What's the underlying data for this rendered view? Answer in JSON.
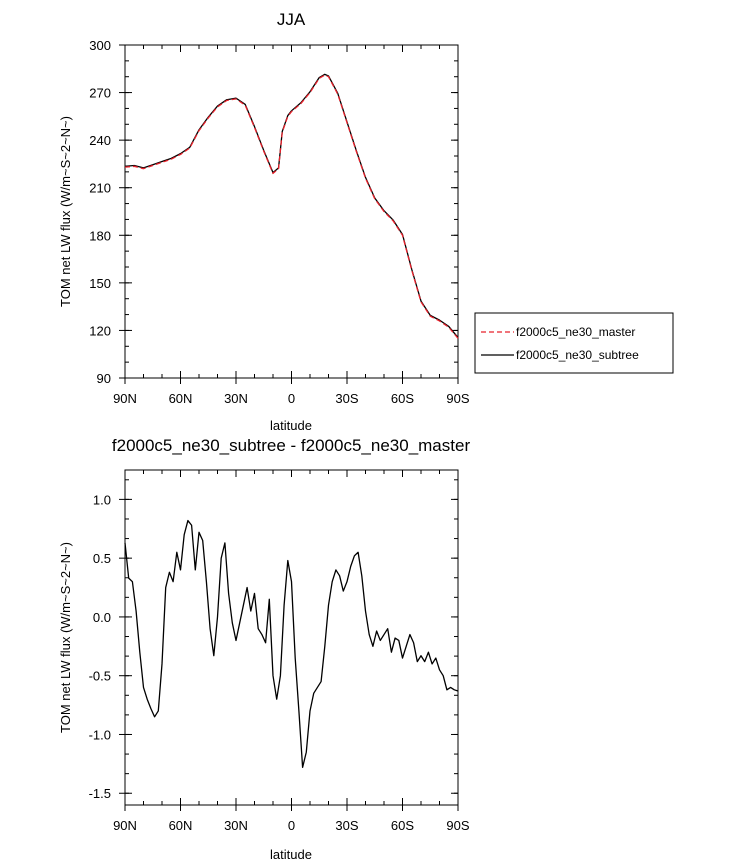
{
  "chart_data": [
    {
      "type": "line",
      "title": "JJA",
      "xlabel": "latitude",
      "ylabel": "TOM net LW flux (W/m~S~2~N~)",
      "xlim": [
        -90,
        90
      ],
      "ylim": [
        90,
        300
      ],
      "x_ticks": [
        -90,
        -60,
        -30,
        0,
        30,
        60,
        90
      ],
      "x_tick_labels": [
        "90N",
        "60N",
        "30N",
        "0",
        "30S",
        "60S",
        "90S"
      ],
      "y_ticks": [
        90,
        120,
        150,
        180,
        210,
        240,
        270,
        300
      ],
      "y_tick_labels": [
        "90",
        "120",
        "150",
        "180",
        "210",
        "240",
        "270",
        "300"
      ],
      "legend_position": "right",
      "x": [
        -90,
        -85,
        -80,
        -75,
        -70,
        -65,
        -60,
        -55,
        -50,
        -45,
        -40,
        -35,
        -30,
        -25,
        -20,
        -15,
        -10,
        -7,
        -5,
        -2,
        0,
        5,
        10,
        15,
        18,
        20,
        25,
        30,
        35,
        40,
        45,
        50,
        55,
        60,
        65,
        70,
        75,
        80,
        85,
        90
      ],
      "series": [
        {
          "name": "f2000c5_ne30_master",
          "color": "#e8202a",
          "style": "dashed",
          "values": [
            223,
            223.5,
            222,
            224,
            226,
            228,
            231,
            235,
            246,
            254,
            261,
            265,
            266,
            262,
            248,
            233,
            219,
            222,
            245,
            255,
            258,
            263,
            270,
            279,
            281,
            280,
            269,
            251,
            233,
            216,
            203,
            195,
            189,
            180,
            158,
            138,
            129,
            126,
            122,
            115
          ]
        },
        {
          "name": "f2000c5_ne30_subtree",
          "color": "#000000",
          "style": "solid",
          "values": [
            223.5,
            224,
            222.5,
            224.5,
            226.5,
            228.5,
            231.5,
            235.5,
            246.5,
            254.5,
            261.5,
            265.5,
            266.5,
            262.5,
            248.5,
            233.5,
            219.5,
            222.5,
            245.5,
            255.5,
            258.5,
            263.5,
            270.5,
            279.5,
            281.5,
            280.5,
            269.5,
            251.5,
            233.5,
            216.5,
            203.5,
            195.5,
            189.5,
            180.5,
            158.5,
            138.5,
            129.5,
            126.5,
            122.5,
            115.5
          ]
        }
      ]
    },
    {
      "type": "line",
      "title": "f2000c5_ne30_subtree - f2000c5_ne30_master",
      "xlabel": "latitude",
      "ylabel": "TOM net LW flux (W/m~S~2~N~)",
      "xlim": [
        -90,
        90
      ],
      "ylim": [
        -1.6,
        1.25
      ],
      "x_ticks": [
        -90,
        -60,
        -30,
        0,
        30,
        60,
        90
      ],
      "x_tick_labels": [
        "90N",
        "60N",
        "30N",
        "0",
        "30S",
        "60S",
        "90S"
      ],
      "y_ticks": [
        -1.5,
        -1.0,
        -0.5,
        0.0,
        0.5,
        1.0
      ],
      "y_tick_labels": [
        "-1.5",
        "-1.0",
        "-0.5",
        "0.0",
        "0.5",
        "1.0"
      ],
      "x": [
        -90,
        -88,
        -86,
        -84,
        -82,
        -80,
        -78,
        -76,
        -74,
        -72,
        -70,
        -68,
        -66,
        -64,
        -62,
        -60,
        -58,
        -56,
        -54,
        -52,
        -50,
        -48,
        -46,
        -44,
        -42,
        -40,
        -38,
        -36,
        -34,
        -32,
        -30,
        -28,
        -26,
        -24,
        -22,
        -20,
        -18,
        -16,
        -14,
        -12,
        -10,
        -8,
        -6,
        -4,
        -2,
        0,
        2,
        4,
        6,
        8,
        10,
        12,
        14,
        16,
        18,
        20,
        22,
        24,
        26,
        28,
        30,
        32,
        34,
        36,
        38,
        40,
        42,
        44,
        46,
        48,
        50,
        52,
        54,
        56,
        58,
        60,
        62,
        64,
        66,
        68,
        70,
        72,
        74,
        76,
        78,
        80,
        82,
        84,
        86,
        88,
        90
      ],
      "series": [
        {
          "name": "f2000c5_ne30_subtree - f2000c5_ne30_master",
          "color": "#000000",
          "style": "solid",
          "values": [
            0.63,
            0.33,
            0.3,
            0.05,
            -0.3,
            -0.6,
            -0.7,
            -0.78,
            -0.85,
            -0.8,
            -0.4,
            0.25,
            0.38,
            0.3,
            0.55,
            0.4,
            0.7,
            0.82,
            0.78,
            0.4,
            0.72,
            0.65,
            0.3,
            -0.1,
            -0.33,
            0.0,
            0.5,
            0.63,
            0.2,
            -0.05,
            -0.2,
            -0.05,
            0.1,
            0.25,
            0.05,
            0.2,
            -0.1,
            -0.15,
            -0.22,
            0.15,
            -0.5,
            -0.7,
            -0.5,
            0.1,
            0.48,
            0.3,
            -0.35,
            -0.8,
            -1.28,
            -1.15,
            -0.8,
            -0.65,
            -0.6,
            -0.55,
            -0.25,
            0.1,
            0.3,
            0.4,
            0.35,
            0.22,
            0.3,
            0.43,
            0.52,
            0.55,
            0.35,
            0.05,
            -0.15,
            -0.25,
            -0.12,
            -0.2,
            -0.15,
            -0.1,
            -0.3,
            -0.18,
            -0.2,
            -0.35,
            -0.25,
            -0.15,
            -0.22,
            -0.38,
            -0.33,
            -0.38,
            -0.3,
            -0.4,
            -0.35,
            -0.45,
            -0.5,
            -0.62,
            -0.6,
            -0.62,
            -0.63
          ]
        }
      ]
    }
  ]
}
